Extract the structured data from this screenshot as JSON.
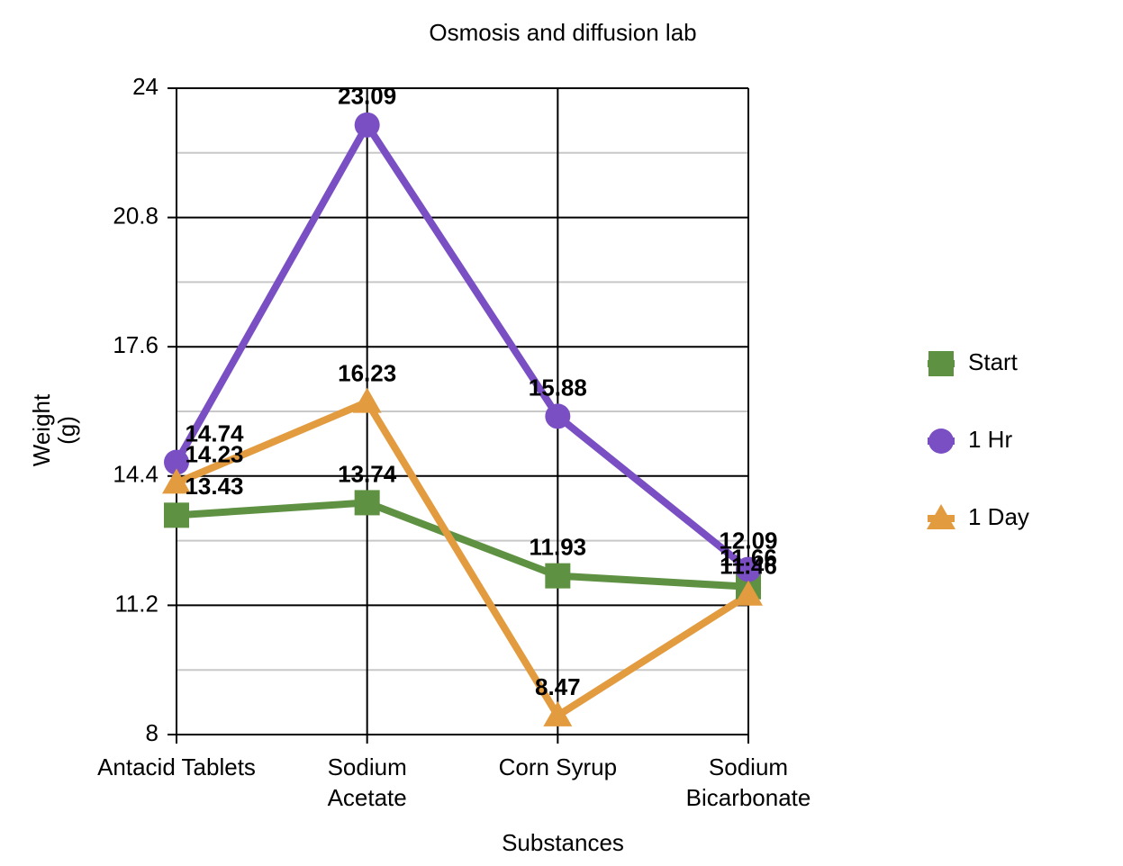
{
  "chart_data": {
    "type": "line",
    "title": "Osmosis and diffusion lab",
    "x_label": "Substances",
    "y_label": "Weight\n(g)",
    "categories": [
      "Antacid Tablets",
      "Sodium\nAcetate",
      "Corn Syrup",
      "Sodium\nBicarbonate"
    ],
    "series": [
      {
        "name": "Start",
        "color": "#5f9143",
        "marker": "square",
        "values": [
          13.43,
          13.74,
          11.93,
          11.66
        ]
      },
      {
        "name": "1 Hr",
        "color": "#7b4fc4",
        "marker": "circle",
        "values": [
          14.74,
          23.09,
          15.88,
          12.09
        ]
      },
      {
        "name": "1 Day",
        "color": "#e39b3f",
        "marker": "triangle",
        "values": [
          14.23,
          16.23,
          8.47,
          11.46
        ]
      }
    ],
    "ylim": [
      8,
      24
    ],
    "yticks": [
      8,
      11.2,
      14.4,
      17.6,
      20.8,
      24
    ],
    "grid": true,
    "legend": "right"
  }
}
